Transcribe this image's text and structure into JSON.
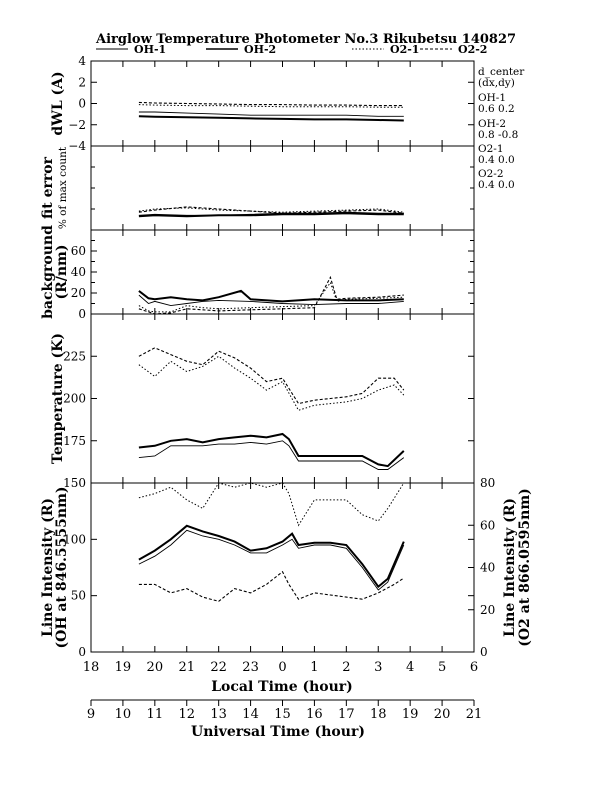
{
  "title": "Airglow Temperature Photometer No.3  Rikubetsu     140827",
  "legend": [
    {
      "name": "OH-1",
      "style": "solid-thin"
    },
    {
      "name": "OH-2",
      "style": "solid-thick"
    },
    {
      "name": "O2-1",
      "style": "dotted"
    },
    {
      "name": "O2-2",
      "style": "dashed"
    }
  ],
  "annotations": [
    "d_center",
    "(dx,dy)",
    "OH-1",
    "0.6   0.2",
    "OH-2",
    "0.8   -0.8",
    "O2-1",
    "0.4   0.0",
    "O2-2",
    "0.4   0.0"
  ],
  "x_axis_local": {
    "label": "Local Time (hour)",
    "ticks": [
      "18",
      "19",
      "20",
      "21",
      "22",
      "23",
      "0",
      "1",
      "2",
      "3",
      "4",
      "5",
      "6"
    ]
  },
  "x_axis_ut": {
    "label": "Universal Time (hour)",
    "ticks": [
      "9",
      "10",
      "11",
      "12",
      "13",
      "14",
      "15",
      "16",
      "17",
      "18",
      "19",
      "20",
      "21"
    ]
  },
  "chart_data": [
    {
      "type": "line",
      "ylabel": "dWL (A)",
      "ylim": [
        -4,
        4
      ],
      "yticks": [
        "4",
        "2",
        "0",
        "−2",
        "−4"
      ],
      "x_unit": "local time hours (24 = 0h)",
      "series": [
        {
          "name": "OH-1",
          "x": [
            19.5,
            20,
            21,
            22,
            23,
            24,
            25,
            26,
            27,
            27.8
          ],
          "y": [
            -0.8,
            -0.8,
            -0.9,
            -1.0,
            -1.1,
            -1.1,
            -1.1,
            -1.1,
            -1.2,
            -1.2
          ]
        },
        {
          "name": "OH-2",
          "x": [
            19.5,
            20,
            21,
            22,
            23,
            24,
            25,
            26,
            27,
            27.8
          ],
          "y": [
            -1.2,
            -1.25,
            -1.3,
            -1.35,
            -1.4,
            -1.45,
            -1.5,
            -1.5,
            -1.55,
            -1.6
          ]
        },
        {
          "name": "O2-1",
          "x": [
            19.5,
            20,
            21,
            22,
            23,
            24,
            25,
            26,
            27,
            27.8
          ],
          "y": [
            -0.1,
            -0.15,
            -0.2,
            -0.2,
            -0.25,
            -0.3,
            -0.3,
            -0.3,
            -0.35,
            -0.35
          ]
        },
        {
          "name": "O2-2",
          "x": [
            19.5,
            20,
            21,
            22,
            23,
            24,
            25,
            26,
            27,
            27.8
          ],
          "y": [
            0.1,
            0.05,
            0.0,
            -0.05,
            -0.1,
            -0.1,
            -0.15,
            -0.15,
            -0.2,
            -0.2
          ]
        }
      ]
    },
    {
      "type": "line",
      "ylabel": "fit error",
      "ylabel2": "% of max count",
      "ylim": [
        0,
        4
      ],
      "series": [
        {
          "name": "OH-1",
          "x": [
            19.5,
            20,
            21,
            22,
            23,
            24,
            25,
            26,
            27,
            27.8
          ],
          "y": [
            0.7,
            0.75,
            0.7,
            0.7,
            0.75,
            0.8,
            0.8,
            0.85,
            0.8,
            0.8
          ]
        },
        {
          "name": "OH-2",
          "x": [
            19.5,
            20,
            21,
            22,
            23,
            24,
            25,
            26,
            27,
            27.8
          ],
          "y": [
            0.65,
            0.7,
            0.65,
            0.7,
            0.7,
            0.75,
            0.75,
            0.8,
            0.75,
            0.75
          ]
        },
        {
          "name": "O2-1",
          "x": [
            19.5,
            20,
            21,
            22,
            23,
            24,
            25,
            26,
            27,
            27.8
          ],
          "y": [
            0.9,
            1.0,
            1.05,
            0.95,
            0.9,
            0.85,
            0.9,
            0.95,
            1.0,
            0.85
          ]
        },
        {
          "name": "O2-2",
          "x": [
            19.5,
            20,
            21,
            22,
            23,
            24,
            25,
            26,
            27,
            27.8
          ],
          "y": [
            0.85,
            0.95,
            1.1,
            1.0,
            0.9,
            0.8,
            0.85,
            0.9,
            0.95,
            0.8
          ]
        }
      ]
    },
    {
      "type": "line",
      "ylabel": "background",
      "ylabel2": "(R/nm)",
      "ylim": [
        0,
        80
      ],
      "yticks": [
        "60",
        "40",
        "20",
        "0"
      ],
      "series": [
        {
          "name": "OH-1",
          "x": [
            19.5,
            19.8,
            20,
            20.5,
            21,
            21.5,
            22,
            23,
            24,
            25,
            26,
            27,
            27.8
          ],
          "y": [
            18,
            10,
            12,
            8,
            10,
            12,
            13,
            12,
            10,
            9,
            10,
            10,
            12
          ]
        },
        {
          "name": "OH-2",
          "x": [
            19.5,
            19.8,
            20,
            20.5,
            21,
            21.5,
            22,
            22.7,
            23,
            24,
            25,
            26,
            27,
            27.8
          ],
          "y": [
            22,
            15,
            14,
            16,
            14,
            13,
            16,
            22,
            14,
            12,
            14,
            13,
            13,
            14
          ]
        },
        {
          "name": "O2-1",
          "x": [
            19.5,
            19.8,
            20,
            20.5,
            21,
            21.5,
            22,
            23,
            24,
            25,
            25.5,
            25.7,
            26,
            27,
            27.8
          ],
          "y": [
            8,
            3,
            2,
            2,
            8,
            6,
            5,
            6,
            7,
            8,
            30,
            12,
            14,
            15,
            16
          ]
        },
        {
          "name": "O2-2",
          "x": [
            19.5,
            19.8,
            20,
            20.5,
            21,
            21.5,
            22,
            23,
            24,
            25,
            25.5,
            25.7,
            26,
            27,
            27.8
          ],
          "y": [
            5,
            2,
            0,
            1,
            5,
            4,
            3,
            4,
            5,
            6,
            35,
            14,
            15,
            16,
            18
          ]
        }
      ]
    },
    {
      "type": "line",
      "ylabel": "Temperature (K)",
      "ylim": [
        150,
        250
      ],
      "yticks": [
        "225",
        "200",
        "175"
      ],
      "series": [
        {
          "name": "OH-1",
          "x": [
            19.5,
            20,
            20.5,
            21,
            21.5,
            22,
            22.5,
            23,
            23.5,
            24,
            24.2,
            24.5,
            25,
            25.5,
            26,
            26.5,
            27,
            27.3,
            27.8
          ],
          "y": [
            165,
            166,
            172,
            172,
            172,
            173,
            173,
            174,
            173,
            175,
            172,
            163,
            163,
            163,
            163,
            163,
            158,
            158,
            165
          ]
        },
        {
          "name": "OH-2",
          "x": [
            19.5,
            20,
            20.5,
            21,
            21.5,
            22,
            22.5,
            23,
            23.5,
            24,
            24.2,
            24.5,
            25,
            25.5,
            26,
            26.5,
            27,
            27.3,
            27.8
          ],
          "y": [
            171,
            172,
            175,
            176,
            174,
            176,
            177,
            178,
            177,
            179,
            176,
            166,
            166,
            166,
            166,
            166,
            161,
            160,
            169
          ]
        },
        {
          "name": "O2-1",
          "x": [
            19.5,
            20,
            20.5,
            21,
            21.5,
            22,
            22.5,
            23,
            23.5,
            24,
            24.5,
            25,
            25.5,
            26,
            26.5,
            27,
            27.5,
            27.8
          ],
          "y": [
            220,
            213,
            222,
            216,
            219,
            225,
            218,
            212,
            205,
            210,
            193,
            196,
            197,
            198,
            200,
            205,
            208,
            202
          ]
        },
        {
          "name": "O2-2",
          "x": [
            19.5,
            20,
            20.5,
            21,
            21.5,
            22,
            22.5,
            23,
            23.5,
            24,
            24.5,
            25,
            25.5,
            26,
            26.5,
            27,
            27.5,
            27.8
          ],
          "y": [
            225,
            230,
            226,
            222,
            220,
            228,
            224,
            218,
            210,
            212,
            197,
            199,
            200,
            201,
            203,
            212,
            212,
            205
          ]
        }
      ]
    },
    {
      "type": "line",
      "ylabel": "Line Intensity (R)",
      "ylabel2": "(OH at 846.5555nm)",
      "ylabel_right": "Line Intensity (R)",
      "ylabel_right2": "(O2 at 866.0595nm)",
      "ylim": [
        0,
        150
      ],
      "yticks": [
        "150",
        "100",
        "50",
        "0"
      ],
      "ylim_right": [
        0,
        80
      ],
      "yticks_right": [
        "80",
        "60",
        "40",
        "20",
        "0"
      ],
      "series": [
        {
          "name": "OH-1",
          "x": [
            19.5,
            20,
            20.5,
            21,
            21.5,
            22,
            22.5,
            23,
            23.5,
            24,
            24.3,
            24.5,
            25,
            25.5,
            26,
            26.5,
            27,
            27.3,
            27.8
          ],
          "y": [
            78,
            85,
            95,
            108,
            103,
            100,
            95,
            88,
            88,
            95,
            100,
            92,
            95,
            95,
            92,
            75,
            55,
            62,
            95
          ]
        },
        {
          "name": "OH-2",
          "x": [
            19.5,
            20,
            20.5,
            21,
            21.5,
            22,
            22.5,
            23,
            23.5,
            24,
            24.3,
            24.5,
            25,
            25.5,
            26,
            26.5,
            27,
            27.3,
            27.8
          ],
          "y": [
            82,
            90,
            100,
            112,
            107,
            103,
            98,
            90,
            92,
            98,
            105,
            95,
            97,
            97,
            95,
            78,
            58,
            65,
            98
          ]
        },
        {
          "name": "O2-1 (right axis)",
          "x": [
            19.5,
            20,
            20.5,
            21,
            21.5,
            22,
            22.5,
            23,
            23.5,
            24,
            24.2,
            24.5,
            25,
            25.5,
            26,
            26.5,
            27,
            27.3,
            27.8
          ],
          "y": [
            73,
            75,
            78,
            72,
            68,
            80,
            78,
            80,
            78,
            80,
            75,
            60,
            72,
            72,
            72,
            65,
            62,
            68,
            80
          ]
        },
        {
          "name": "O2-2 (right axis)",
          "x": [
            19.5,
            20,
            20.5,
            21,
            21.5,
            22,
            22.5,
            23,
            23.5,
            24,
            24.2,
            24.5,
            25,
            25.5,
            26,
            26.5,
            27,
            27.5,
            27.8
          ],
          "y": [
            32,
            32,
            28,
            30,
            26,
            24,
            30,
            28,
            32,
            38,
            32,
            25,
            28,
            27,
            26,
            25,
            28,
            32,
            35
          ]
        }
      ]
    }
  ]
}
